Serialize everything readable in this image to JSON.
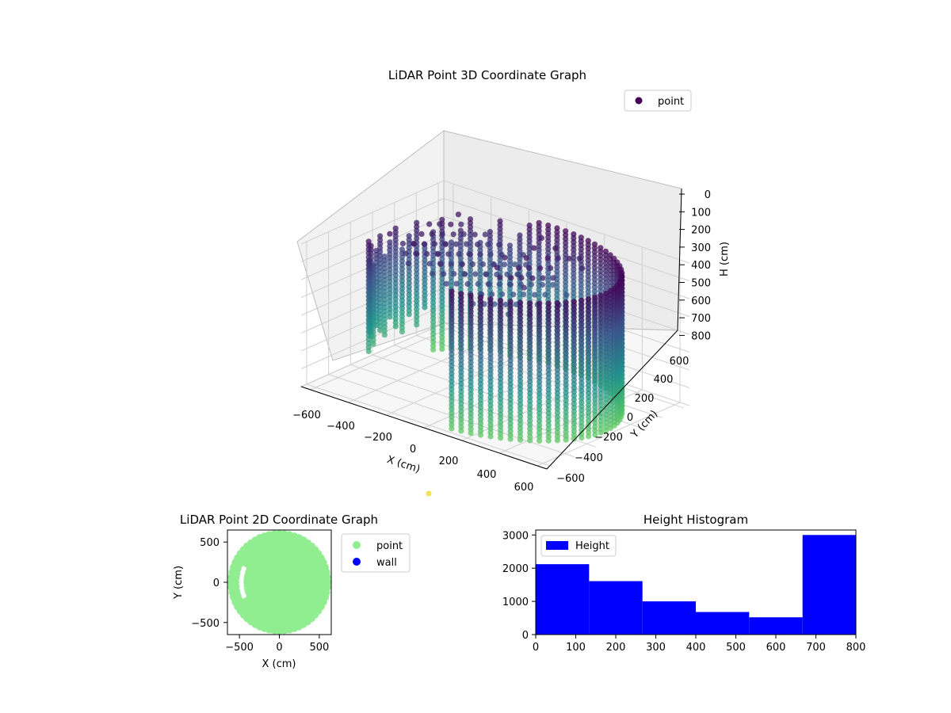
{
  "chart_data": [
    {
      "type": "scatter",
      "title": "LiDAR Point 3D Coordinate Graph",
      "xlabel": "X (cm)",
      "ylabel": "Y (cm)",
      "zlabel": "H (cm)",
      "xlim": [
        -650,
        650
      ],
      "ylim": [
        -650,
        650
      ],
      "zlim": [
        0,
        800
      ],
      "z_inverted": true,
      "x_ticks": [
        "−600",
        "−400",
        "−200",
        "0",
        "200",
        "400",
        "600"
      ],
      "y_ticks": [
        "−600",
        "−400",
        "−200",
        "0",
        "200",
        "400",
        "600"
      ],
      "z_ticks": [
        "0",
        "100",
        "200",
        "300",
        "400",
        "500",
        "600",
        "700",
        "800"
      ],
      "legend": {
        "position": "top-right",
        "entries": [
          {
            "label": "point",
            "color": "#440154"
          }
        ]
      },
      "colormap": "viridis",
      "grid": true,
      "description_points": {
        "ring_radius_cm": 580,
        "ring_angle_range_deg": [
          -80,
          210
        ],
        "height_range_cm": [
          0,
          800
        ]
      }
    },
    {
      "type": "scatter",
      "title": "LiDAR Point 2D Coordinate Graph",
      "xlabel": "X (cm)",
      "ylabel": "Y (cm)",
      "xlim": [
        -650,
        650
      ],
      "ylim": [
        -650,
        650
      ],
      "x_ticks": [
        "−500",
        "0",
        "500"
      ],
      "y_ticks": [
        "−500",
        "0",
        "500"
      ],
      "legend": {
        "position": "outside-right",
        "entries": [
          {
            "label": "point",
            "color": "#90ee90"
          },
          {
            "label": "wall",
            "color": "#0000ff"
          }
        ]
      }
    },
    {
      "type": "bar",
      "title": "Height Histogram",
      "xlabel": "",
      "ylabel": "",
      "bin_edges": [
        0,
        133.3,
        266.7,
        400,
        533.3,
        666.7,
        800
      ],
      "values": [
        2120,
        1610,
        1000,
        680,
        520,
        3000
      ],
      "xlim": [
        0,
        800
      ],
      "ylim": [
        0,
        3150
      ],
      "x_ticks": [
        "0",
        "100",
        "200",
        "300",
        "400",
        "500",
        "600",
        "700",
        "800"
      ],
      "y_ticks": [
        "0",
        "1000",
        "2000",
        "3000"
      ],
      "legend": {
        "position": "top-left",
        "entries": [
          {
            "label": "Height",
            "color": "#0000ff"
          }
        ]
      }
    }
  ]
}
